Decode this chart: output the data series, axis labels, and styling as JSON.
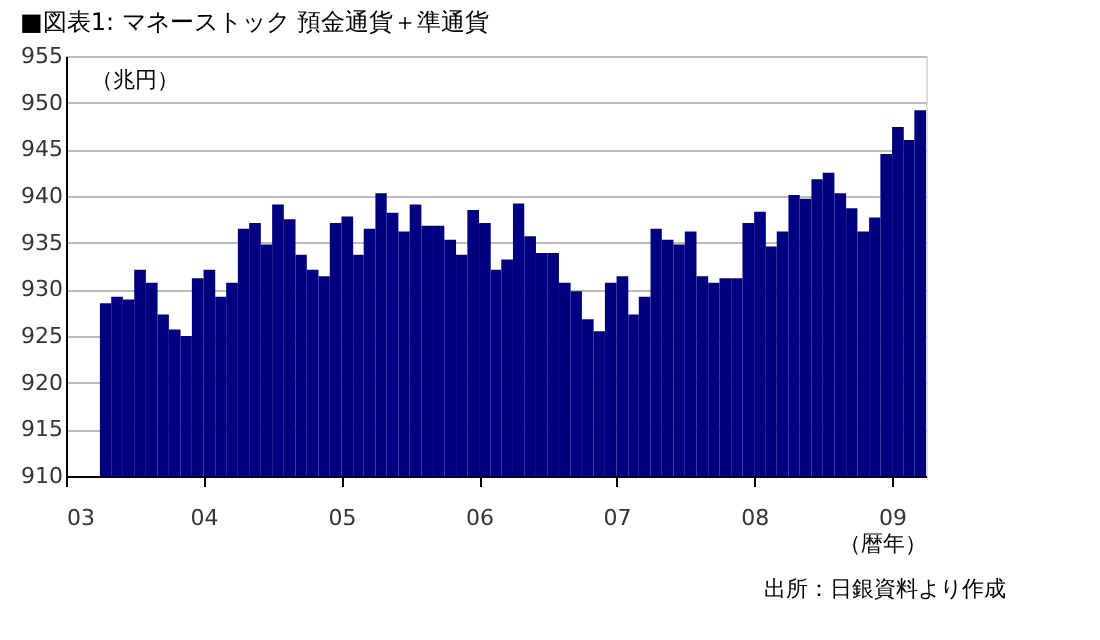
{
  "chart_data": {
    "type": "bar",
    "title": "■図表1: マネーストック 預金通貨＋準通貨",
    "ylabel": "（兆円）",
    "xlabel": "（暦年）",
    "annotations": [
      "出所：日銀資料より作成"
    ],
    "x": [
      "2003-04",
      "2003-05",
      "2003-06",
      "2003-07",
      "2003-08",
      "2003-09",
      "2003-10",
      "2003-11",
      "2003-12",
      "2004-01",
      "2004-02",
      "2004-03",
      "2004-04",
      "2004-05",
      "2004-06",
      "2004-07",
      "2004-08",
      "2004-09",
      "2004-10",
      "2004-11",
      "2004-12",
      "2005-01",
      "2005-02",
      "2005-03",
      "2005-04",
      "2005-05",
      "2005-06",
      "2005-07",
      "2005-08",
      "2005-09",
      "2005-10",
      "2005-11",
      "2005-12",
      "2006-01",
      "2006-02",
      "2006-03",
      "2006-04",
      "2006-05",
      "2006-06",
      "2006-07",
      "2006-08",
      "2006-09",
      "2006-10",
      "2006-11",
      "2006-12",
      "2007-01",
      "2007-02",
      "2007-03",
      "2007-04",
      "2007-05",
      "2007-06",
      "2007-07",
      "2007-08",
      "2007-09",
      "2007-10",
      "2007-11",
      "2007-12",
      "2008-01",
      "2008-02",
      "2008-03",
      "2008-04",
      "2008-05",
      "2008-06",
      "2008-07",
      "2008-08",
      "2008-09",
      "2008-10",
      "2008-11",
      "2008-12",
      "2009-01",
      "2009-02",
      "2009-03"
    ],
    "series": [
      {
        "color": "#000080",
        "values": [
          928.5,
          929.2,
          928.9,
          932.1,
          930.7,
          927.3,
          925.7,
          925.0,
          931.2,
          932.1,
          929.2,
          930.7,
          936.5,
          937.1,
          934.8,
          939.1,
          937.5,
          933.7,
          932.1,
          931.4,
          937.1,
          937.8,
          933.7,
          936.5,
          940.3,
          938.2,
          936.2,
          939.1,
          936.8,
          936.8,
          935.3,
          933.7,
          938.5,
          937.1,
          932.1,
          933.2,
          939.2,
          935.7,
          933.9,
          933.9,
          930.7,
          929.8,
          926.8,
          925.5,
          930.7,
          931.4,
          927.3,
          929.2,
          936.5,
          935.3,
          934.8,
          936.2,
          931.4,
          930.7,
          931.2,
          931.2,
          937.1,
          938.3,
          934.6,
          936.2,
          940.1,
          939.7,
          941.8,
          942.5,
          940.3,
          938.7,
          936.2,
          937.7,
          944.5,
          947.4,
          946.0,
          949.2
        ]
      }
    ],
    "xlim": [
      "2003-01",
      "2009-04"
    ],
    "xticks": [
      {
        "value": "2003-01",
        "label": "03"
      },
      {
        "value": "2004-01",
        "label": "04"
      },
      {
        "value": "2005-01",
        "label": "05"
      },
      {
        "value": "2006-01",
        "label": "06"
      },
      {
        "value": "2007-01",
        "label": "07"
      },
      {
        "value": "2008-01",
        "label": "08"
      },
      {
        "value": "2009-01",
        "label": "09"
      }
    ],
    "ylim": [
      910,
      955
    ],
    "yticks": [
      910,
      915,
      920,
      925,
      930,
      935,
      940,
      945,
      950,
      955
    ],
    "grid": "y"
  }
}
